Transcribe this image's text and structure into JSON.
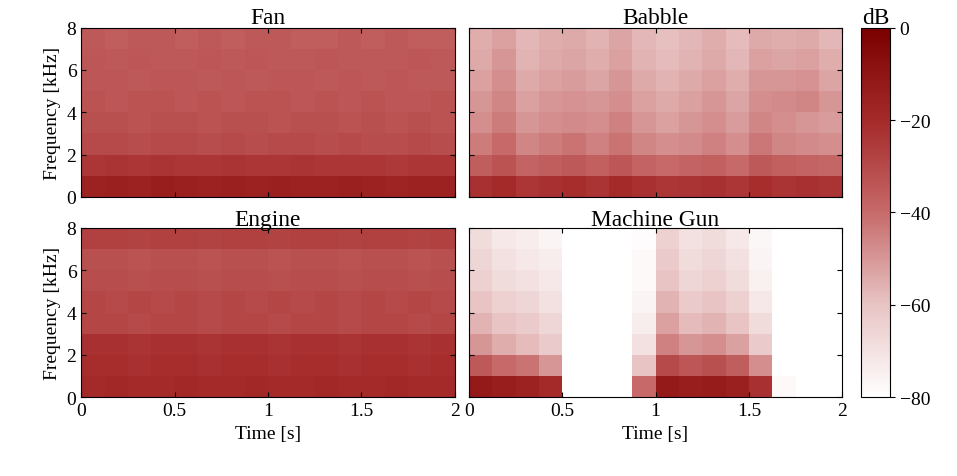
{
  "chart_data": [
    {
      "type": "heatmap",
      "title": "Fan",
      "y_label": "Frequency [kHz]",
      "tick_labels": "y",
      "x": [
        0,
        0.125,
        0.25,
        0.375,
        0.5,
        0.625,
        0.75,
        0.875,
        1,
        1.125,
        1.25,
        1.375,
        1.5,
        1.625,
        1.75,
        1.875,
        2
      ],
      "y": [
        0,
        1,
        2,
        3,
        4,
        5,
        6,
        7,
        8
      ],
      "xlim": [
        0,
        2
      ],
      "ylim": [
        0,
        8
      ],
      "xticks": [
        0,
        0.5,
        1,
        1.5,
        2
      ],
      "yticks": [
        0,
        2,
        4,
        6,
        8
      ],
      "cells": [
        [
          -16,
          -15,
          -16,
          -14,
          -15,
          -16,
          -15,
          -16,
          -15,
          -16,
          -16,
          -15,
          -16,
          -17,
          -16,
          -16
        ],
        [
          -24,
          -23,
          -24,
          -23,
          -24,
          -24,
          -23,
          -24,
          -24,
          -23,
          -24,
          -24,
          -24,
          -25,
          -24,
          -24
        ],
        [
          -30,
          -30,
          -31,
          -30,
          -30,
          -31,
          -30,
          -31,
          -30,
          -30,
          -31,
          -30,
          -31,
          -31,
          -30,
          -31
        ],
        [
          -32,
          -32,
          -33,
          -32,
          -32,
          -33,
          -32,
          -32,
          -33,
          -32,
          -32,
          -33,
          -32,
          -33,
          -32,
          -33
        ],
        [
          -33,
          -34,
          -33,
          -33,
          -34,
          -33,
          -34,
          -33,
          -33,
          -34,
          -33,
          -34,
          -33,
          -34,
          -34,
          -33
        ],
        [
          -34,
          -34,
          -35,
          -34,
          -34,
          -35,
          -34,
          -35,
          -34,
          -34,
          -35,
          -34,
          -35,
          -34,
          -35,
          -35
        ],
        [
          -34,
          -35,
          -34,
          -35,
          -35,
          -34,
          -35,
          -34,
          -35,
          -35,
          -34,
          -35,
          -35,
          -35,
          -34,
          -35
        ],
        [
          -35,
          -36,
          -35,
          -35,
          -36,
          -35,
          -36,
          -35,
          -35,
          -36,
          -36,
          -35,
          -36,
          -35,
          -36,
          -36
        ]
      ]
    },
    {
      "type": "heatmap",
      "title": "Babble",
      "tick_labels": false,
      "x": [
        0,
        0.125,
        0.25,
        0.375,
        0.5,
        0.625,
        0.75,
        0.875,
        1,
        1.125,
        1.25,
        1.375,
        1.5,
        1.625,
        1.75,
        1.875,
        2
      ],
      "y": [
        0,
        1,
        2,
        3,
        4,
        5,
        6,
        7,
        8
      ],
      "xlim": [
        0,
        2
      ],
      "ylim": [
        0,
        8
      ],
      "xticks": [
        0,
        0.5,
        1,
        1.5,
        2
      ],
      "yticks": [
        0,
        2,
        4,
        6,
        8
      ],
      "cells": [
        [
          -22,
          -20,
          -24,
          -22,
          -21,
          -23,
          -20,
          -22,
          -24,
          -23,
          -22,
          -24,
          -21,
          -23,
          -22,
          -23
        ],
        [
          -36,
          -33,
          -38,
          -36,
          -35,
          -37,
          -34,
          -38,
          -40,
          -38,
          -37,
          -40,
          -35,
          -37,
          -38,
          -39
        ],
        [
          -44,
          -40,
          -46,
          -44,
          -42,
          -45,
          -42,
          -46,
          -48,
          -47,
          -45,
          -48,
          -43,
          -46,
          -47,
          -48
        ],
        [
          -48,
          -44,
          -50,
          -48,
          -47,
          -48,
          -45,
          -50,
          -52,
          -50,
          -48,
          -51,
          -46,
          -48,
          -50,
          -51
        ],
        [
          -50,
          -46,
          -52,
          -50,
          -49,
          -50,
          -48,
          -52,
          -54,
          -52,
          -50,
          -53,
          -48,
          -47,
          -46,
          -50
        ],
        [
          -52,
          -48,
          -54,
          -52,
          -51,
          -53,
          -50,
          -54,
          -56,
          -54,
          -52,
          -55,
          -50,
          -50,
          -49,
          -53
        ],
        [
          -54,
          -50,
          -56,
          -54,
          -53,
          -55,
          -52,
          -56,
          -58,
          -56,
          -54,
          -57,
          -52,
          -53,
          -52,
          -55
        ],
        [
          -55,
          -52,
          -57,
          -55,
          -54,
          -56,
          -53,
          -57,
          -59,
          -57,
          -55,
          -58,
          -54,
          -55,
          -54,
          -57
        ]
      ]
    },
    {
      "type": "heatmap",
      "title": "Engine",
      "x_label": "Time [s]",
      "y_label": "Frequency [kHz]",
      "x": [
        0,
        0.125,
        0.25,
        0.375,
        0.5,
        0.625,
        0.75,
        0.875,
        1,
        1.125,
        1.25,
        1.375,
        1.5,
        1.625,
        1.75,
        1.875,
        2
      ],
      "y": [
        0,
        1,
        2,
        3,
        4,
        5,
        6,
        7,
        8
      ],
      "xlim": [
        0,
        2
      ],
      "ylim": [
        0,
        8
      ],
      "xticks": [
        0,
        0.5,
        1,
        1.5,
        2
      ],
      "yticks": [
        0,
        2,
        4,
        6,
        8
      ],
      "cells": [
        [
          -20,
          -19,
          -20,
          -20,
          -19,
          -20,
          -20,
          -19,
          -20,
          -20,
          -19,
          -20,
          -20,
          -19,
          -20,
          -20
        ],
        [
          -21,
          -21,
          -22,
          -21,
          -21,
          -22,
          -21,
          -21,
          -22,
          -21,
          -21,
          -22,
          -21,
          -21,
          -22,
          -21
        ],
        [
          -22,
          -22,
          -23,
          -22,
          -22,
          -23,
          -22,
          -22,
          -23,
          -22,
          -22,
          -23,
          -22,
          -22,
          -23,
          -22
        ],
        [
          -29,
          -29,
          -30,
          -29,
          -29,
          -30,
          -29,
          -29,
          -30,
          -29,
          -29,
          -30,
          -29,
          -29,
          -30,
          -29
        ],
        [
          -29,
          -30,
          -29,
          -30,
          -29,
          -30,
          -29,
          -30,
          -29,
          -30,
          -29,
          -30,
          -29,
          -30,
          -29,
          -30
        ],
        [
          -31,
          -31,
          -32,
          -31,
          -31,
          -32,
          -31,
          -31,
          -32,
          -31,
          -31,
          -32,
          -31,
          -31,
          -32,
          -31
        ],
        [
          -32,
          -32,
          -33,
          -32,
          -32,
          -33,
          -32,
          -32,
          -33,
          -32,
          -32,
          -33,
          -32,
          -32,
          -33,
          -32
        ],
        [
          -27,
          -27,
          -28,
          -27,
          -27,
          -28,
          -27,
          -27,
          -28,
          -27,
          -27,
          -28,
          -27,
          -27,
          -28,
          -27
        ]
      ]
    },
    {
      "type": "heatmap",
      "title": "Machine Gun",
      "x_label": "Time [s]",
      "tick_labels": "x",
      "x": [
        0,
        0.125,
        0.25,
        0.375,
        0.5,
        0.625,
        0.75,
        0.875,
        1,
        1.125,
        1.25,
        1.375,
        1.5,
        1.625,
        1.75,
        1.875,
        2
      ],
      "y": [
        0,
        1,
        2,
        3,
        4,
        5,
        6,
        7,
        8
      ],
      "xlim": [
        0,
        2
      ],
      "ylim": [
        0,
        8
      ],
      "xticks": [
        0,
        0.5,
        1,
        1.5,
        2
      ],
      "yticks": [
        0,
        2,
        4,
        6,
        8
      ],
      "cells": [
        [
          -12,
          -14,
          -16,
          -20,
          -80,
          -80,
          -80,
          -40,
          -12,
          -14,
          -13,
          -15,
          -22,
          -78,
          -80,
          -80
        ],
        [
          -35,
          -40,
          -42,
          -50,
          -80,
          -80,
          -80,
          -60,
          -30,
          -34,
          -32,
          -36,
          -48,
          -80,
          -80,
          -80
        ],
        [
          -50,
          -55,
          -58,
          -62,
          -80,
          -80,
          -80,
          -70,
          -45,
          -50,
          -48,
          -52,
          -62,
          -80,
          -80,
          -80
        ],
        [
          -56,
          -60,
          -62,
          -66,
          -80,
          -80,
          -80,
          -74,
          -52,
          -58,
          -56,
          -60,
          -68,
          -80,
          -80,
          -80
        ],
        [
          -60,
          -64,
          -66,
          -70,
          -80,
          -80,
          -80,
          -76,
          -56,
          -62,
          -60,
          -64,
          -72,
          -80,
          -80,
          -80
        ],
        [
          -64,
          -68,
          -70,
          -72,
          -80,
          -80,
          -80,
          -78,
          -60,
          -66,
          -64,
          -68,
          -75,
          -80,
          -80,
          -80
        ],
        [
          -66,
          -70,
          -72,
          -74,
          -80,
          -80,
          -80,
          -78,
          -62,
          -68,
          -66,
          -70,
          -76,
          -80,
          -80,
          -80
        ],
        [
          -68,
          -72,
          -74,
          -76,
          -80,
          -80,
          -80,
          -79,
          -64,
          -70,
          -68,
          -72,
          -77,
          -80,
          -80,
          -80
        ]
      ]
    }
  ],
  "colorbar": {
    "label": "dB",
    "range": [
      -80,
      0
    ],
    "ticks": [
      0,
      {
        "value": -20,
        "label": "−20"
      },
      {
        "value": -40,
        "label": "−40"
      },
      {
        "value": -60,
        "label": "−60"
      },
      {
        "value": -80,
        "label": "−80"
      }
    ]
  }
}
